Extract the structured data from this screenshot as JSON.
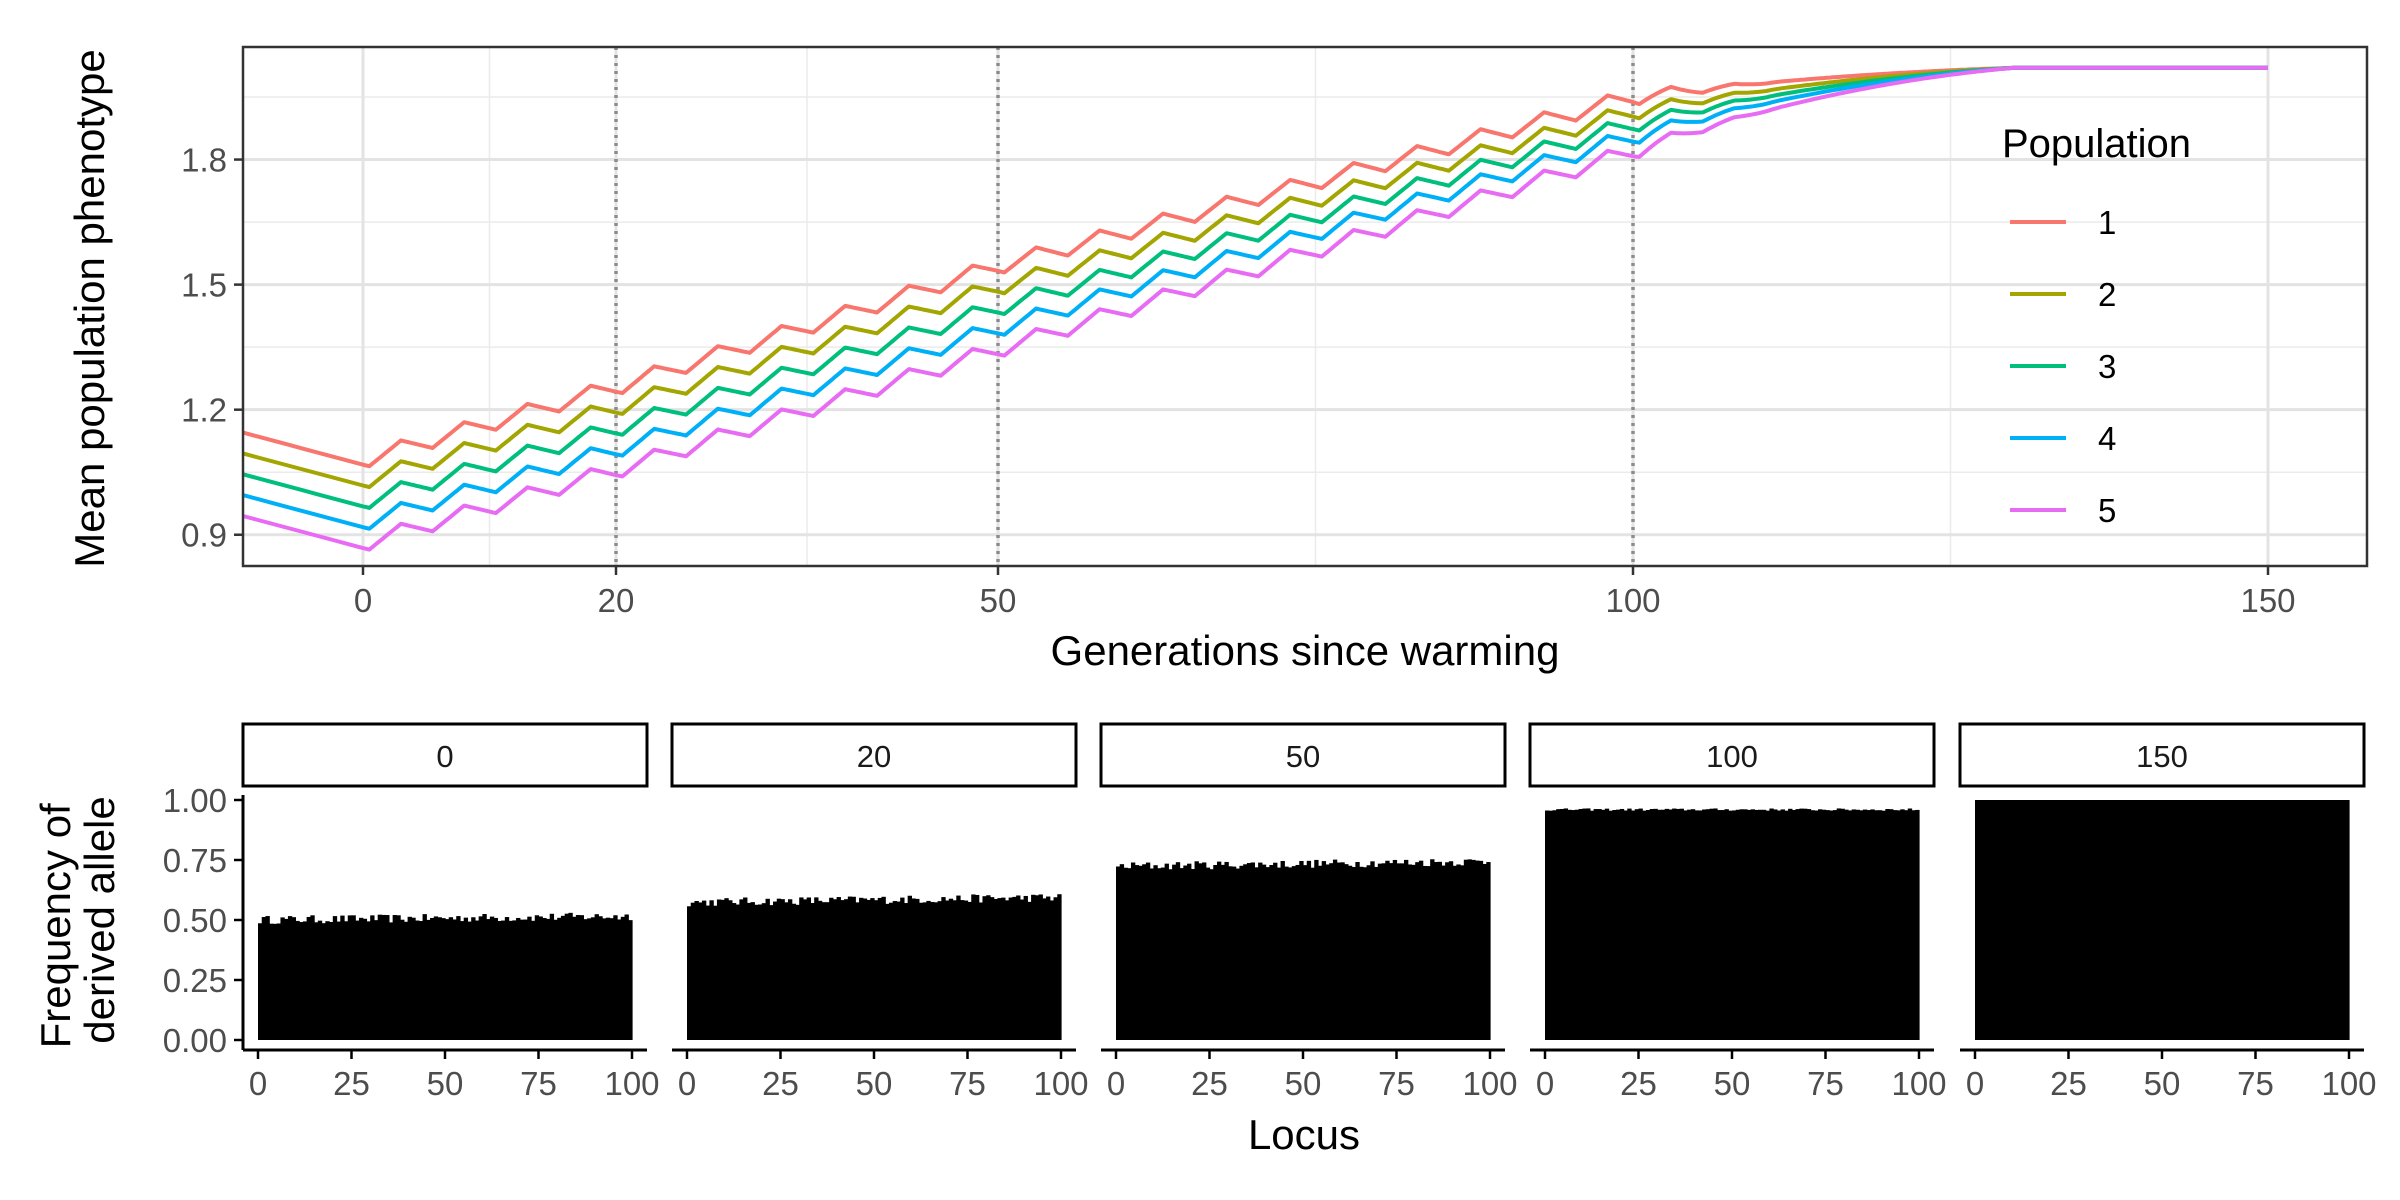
{
  "chart_data": [
    {
      "type": "line",
      "xlabel": "Generations since warming",
      "ylabel": "Mean population phenotype",
      "x_ticks": [
        {
          "label": "0",
          "x": 0
        },
        {
          "label": "20",
          "x": 20
        },
        {
          "label": "50",
          "x": 50
        },
        {
          "label": "100",
          "x": 100
        },
        {
          "label": "150",
          "x": 150
        }
      ],
      "x_axis_breakpoints": [
        -2,
        0,
        20,
        50,
        100,
        150
      ],
      "y_ticks": [
        {
          "label": "0.9",
          "y": 0.9
        },
        {
          "label": "1.2",
          "y": 1.2
        },
        {
          "label": "1.5",
          "y": 1.5
        },
        {
          "label": "1.8",
          "y": 1.8
        }
      ],
      "ylim": [
        0.825,
        2.07
      ],
      "vlines": [
        20,
        50,
        100
      ],
      "grid": true,
      "legend": {
        "title": "Population",
        "placement": "right",
        "entries": [
          {
            "label": "1",
            "color": "#F8766D"
          },
          {
            "label": "2",
            "color": "#A3A500"
          },
          {
            "label": "3",
            "color": "#00BF7D"
          },
          {
            "label": "4",
            "color": "#00B0F6"
          },
          {
            "label": "5",
            "color": "#E76BF3"
          }
        ]
      },
      "series": [
        {
          "name": "1",
          "color": "#F8766D",
          "x": [
            -2,
            0,
            20,
            50,
            100,
            150
          ],
          "y": [
            1.125,
            1.08,
            1.255,
            1.545,
            1.95,
            2.02
          ]
        },
        {
          "name": "2",
          "color": "#A3A500",
          "x": [
            -2,
            0,
            20,
            50,
            100,
            150
          ],
          "y": [
            1.075,
            1.03,
            1.205,
            1.495,
            1.915,
            2.02
          ]
        },
        {
          "name": "3",
          "color": "#00BF7D",
          "x": [
            -2,
            0,
            20,
            50,
            100,
            150
          ],
          "y": [
            1.025,
            0.98,
            1.155,
            1.445,
            1.885,
            2.02
          ]
        },
        {
          "name": "4",
          "color": "#00B0F6",
          "x": [
            -2,
            0,
            20,
            50,
            100,
            150
          ],
          "y": [
            0.975,
            0.93,
            1.105,
            1.395,
            1.855,
            2.02
          ]
        },
        {
          "name": "5",
          "color": "#E76BF3",
          "x": [
            -2,
            0,
            20,
            50,
            100,
            150
          ],
          "y": [
            0.925,
            0.88,
            1.055,
            1.345,
            1.82,
            2.02
          ]
        }
      ],
      "oscillation_amplitude": 0.02,
      "oscillation_period_generations": 5
    },
    {
      "type": "bar",
      "xlabel": "Locus",
      "ylabel": "Frequency of derived allele",
      "ylabel_lines": [
        "Frequency of",
        "derived allele"
      ],
      "x_ticks": [
        "0",
        "25",
        "50",
        "75",
        "100"
      ],
      "y_ticks": [
        "0.00",
        "0.25",
        "0.50",
        "0.75",
        "1.00"
      ],
      "ylim": [
        0,
        1.0
      ],
      "xlim": [
        0,
        100
      ],
      "bar_color": "#000000",
      "panels": [
        {
          "label": "0",
          "mean_frequency": 0.505,
          "end_frequency": 0.52,
          "variation": 0.035
        },
        {
          "label": "20",
          "mean_frequency": 0.58,
          "end_frequency": 0.6,
          "variation": 0.035
        },
        {
          "label": "50",
          "mean_frequency": 0.73,
          "end_frequency": 0.75,
          "variation": 0.035
        },
        {
          "label": "100",
          "mean_frequency": 0.96,
          "end_frequency": 0.96,
          "variation": 0.01
        },
        {
          "label": "150",
          "mean_frequency": 1.0,
          "end_frequency": 1.0,
          "variation": 0.0
        }
      ]
    }
  ]
}
